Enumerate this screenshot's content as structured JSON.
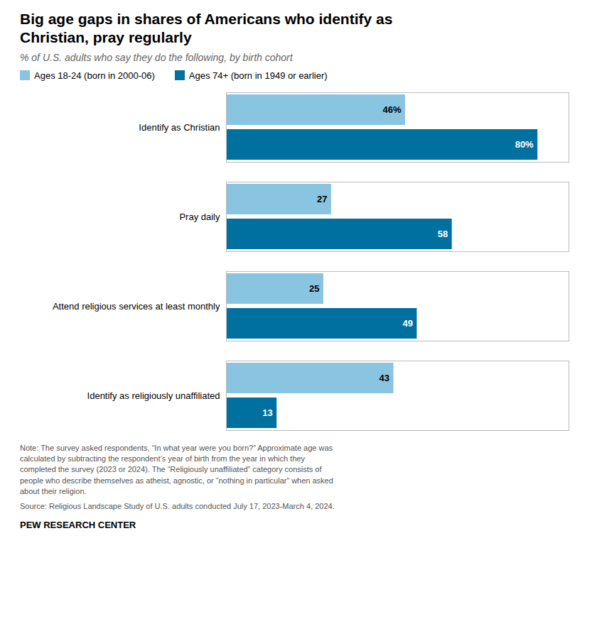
{
  "chart_data": {
    "type": "bar",
    "orientation": "horizontal",
    "title": "Big age gaps in shares of Americans who identify as\nChristian, pray regularly",
    "subtitle": "% of U.S. adults who say they do the following, by birth cohort",
    "categories": [
      "Identify as Christian",
      "Pray daily",
      "Attend religious services at least monthly",
      "Identify as religiously unaffiliated"
    ],
    "series": [
      {
        "name": "Ages 18-24 (born in 2000-06)",
        "color": "#89c4e1",
        "values": [
          46,
          27,
          25,
          43
        ],
        "value_labels": [
          "46%",
          "27",
          "25",
          "43"
        ]
      },
      {
        "name": "Ages 74+ (born in 1949 or earlier)",
        "color": "#0070a0",
        "values": [
          80,
          58,
          49,
          13
        ],
        "value_labels": [
          "80%",
          "58",
          "49",
          "13"
        ]
      }
    ],
    "xlim": [
      0,
      88
    ],
    "xticks": [],
    "tick_labels": "y",
    "data_labels": true,
    "legend": "top",
    "grid": false,
    "note": "Note: The survey asked respondents, “In what year were you born?” Approximate age was\ncalculated by subtracting the respondent’s year of birth from the year in which they\ncompleted the survey (2023 or 2024). The “Religiously unaffiliated” category consists of\npeople who describe themselves as atheist, agnostic, or “nothing in particular” when asked\nabout their religion.",
    "source": "Source: Religious Landscape Study of U.S. adults conducted July 17, 2023-March 4, 2024.",
    "footer": "PEW RESEARCH CENTER"
  }
}
